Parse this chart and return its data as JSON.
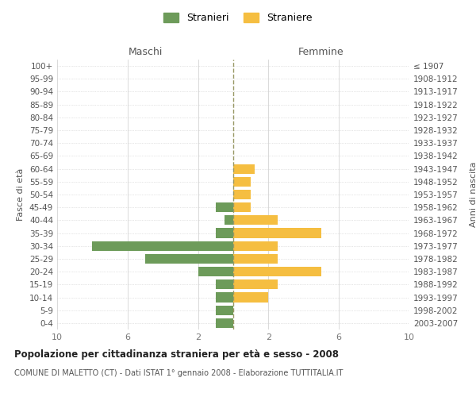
{
  "age_groups": [
    "0-4",
    "5-9",
    "10-14",
    "15-19",
    "20-24",
    "25-29",
    "30-34",
    "35-39",
    "40-44",
    "45-49",
    "50-54",
    "55-59",
    "60-64",
    "65-69",
    "70-74",
    "75-79",
    "80-84",
    "85-89",
    "90-94",
    "95-99",
    "100+"
  ],
  "birth_years": [
    "2003-2007",
    "1998-2002",
    "1993-1997",
    "1988-1992",
    "1983-1987",
    "1978-1982",
    "1973-1977",
    "1968-1972",
    "1963-1967",
    "1958-1962",
    "1953-1957",
    "1948-1952",
    "1943-1947",
    "1938-1942",
    "1933-1937",
    "1928-1932",
    "1923-1927",
    "1918-1922",
    "1913-1917",
    "1908-1912",
    "≤ 1907"
  ],
  "males": [
    1,
    1,
    1,
    1,
    2,
    5,
    8,
    1,
    0.5,
    1,
    0,
    0,
    0,
    0,
    0,
    0,
    0,
    0,
    0,
    0,
    0
  ],
  "females": [
    0,
    0,
    2,
    2.5,
    5,
    2.5,
    2.5,
    5,
    2.5,
    1,
    1,
    1,
    1.2,
    0,
    0,
    0,
    0,
    0,
    0,
    0,
    0
  ],
  "male_color": "#6d9b5a",
  "female_color": "#f5be41",
  "dashed_line_x": 0,
  "xlim": [
    -10,
    10
  ],
  "xticks": [
    -10,
    -6,
    -2,
    2,
    6,
    10
  ],
  "xticklabels": [
    "10",
    "6",
    "2",
    "2",
    "6",
    "10"
  ],
  "title": "Popolazione per cittadinanza straniera per età e sesso - 2008",
  "subtitle": "COMUNE DI MALETTO (CT) - Dati ISTAT 1° gennaio 2008 - Elaborazione TUTTITALIA.IT",
  "legend_stranieri": "Stranieri",
  "legend_straniere": "Straniere",
  "ylabel_left": "Fasce di età",
  "ylabel_right": "Anni di nascita",
  "header_maschi": "Maschi",
  "header_femmine": "Femmine",
  "bg_color": "#ffffff",
  "grid_color": "#cccccc",
  "bar_height": 0.75
}
